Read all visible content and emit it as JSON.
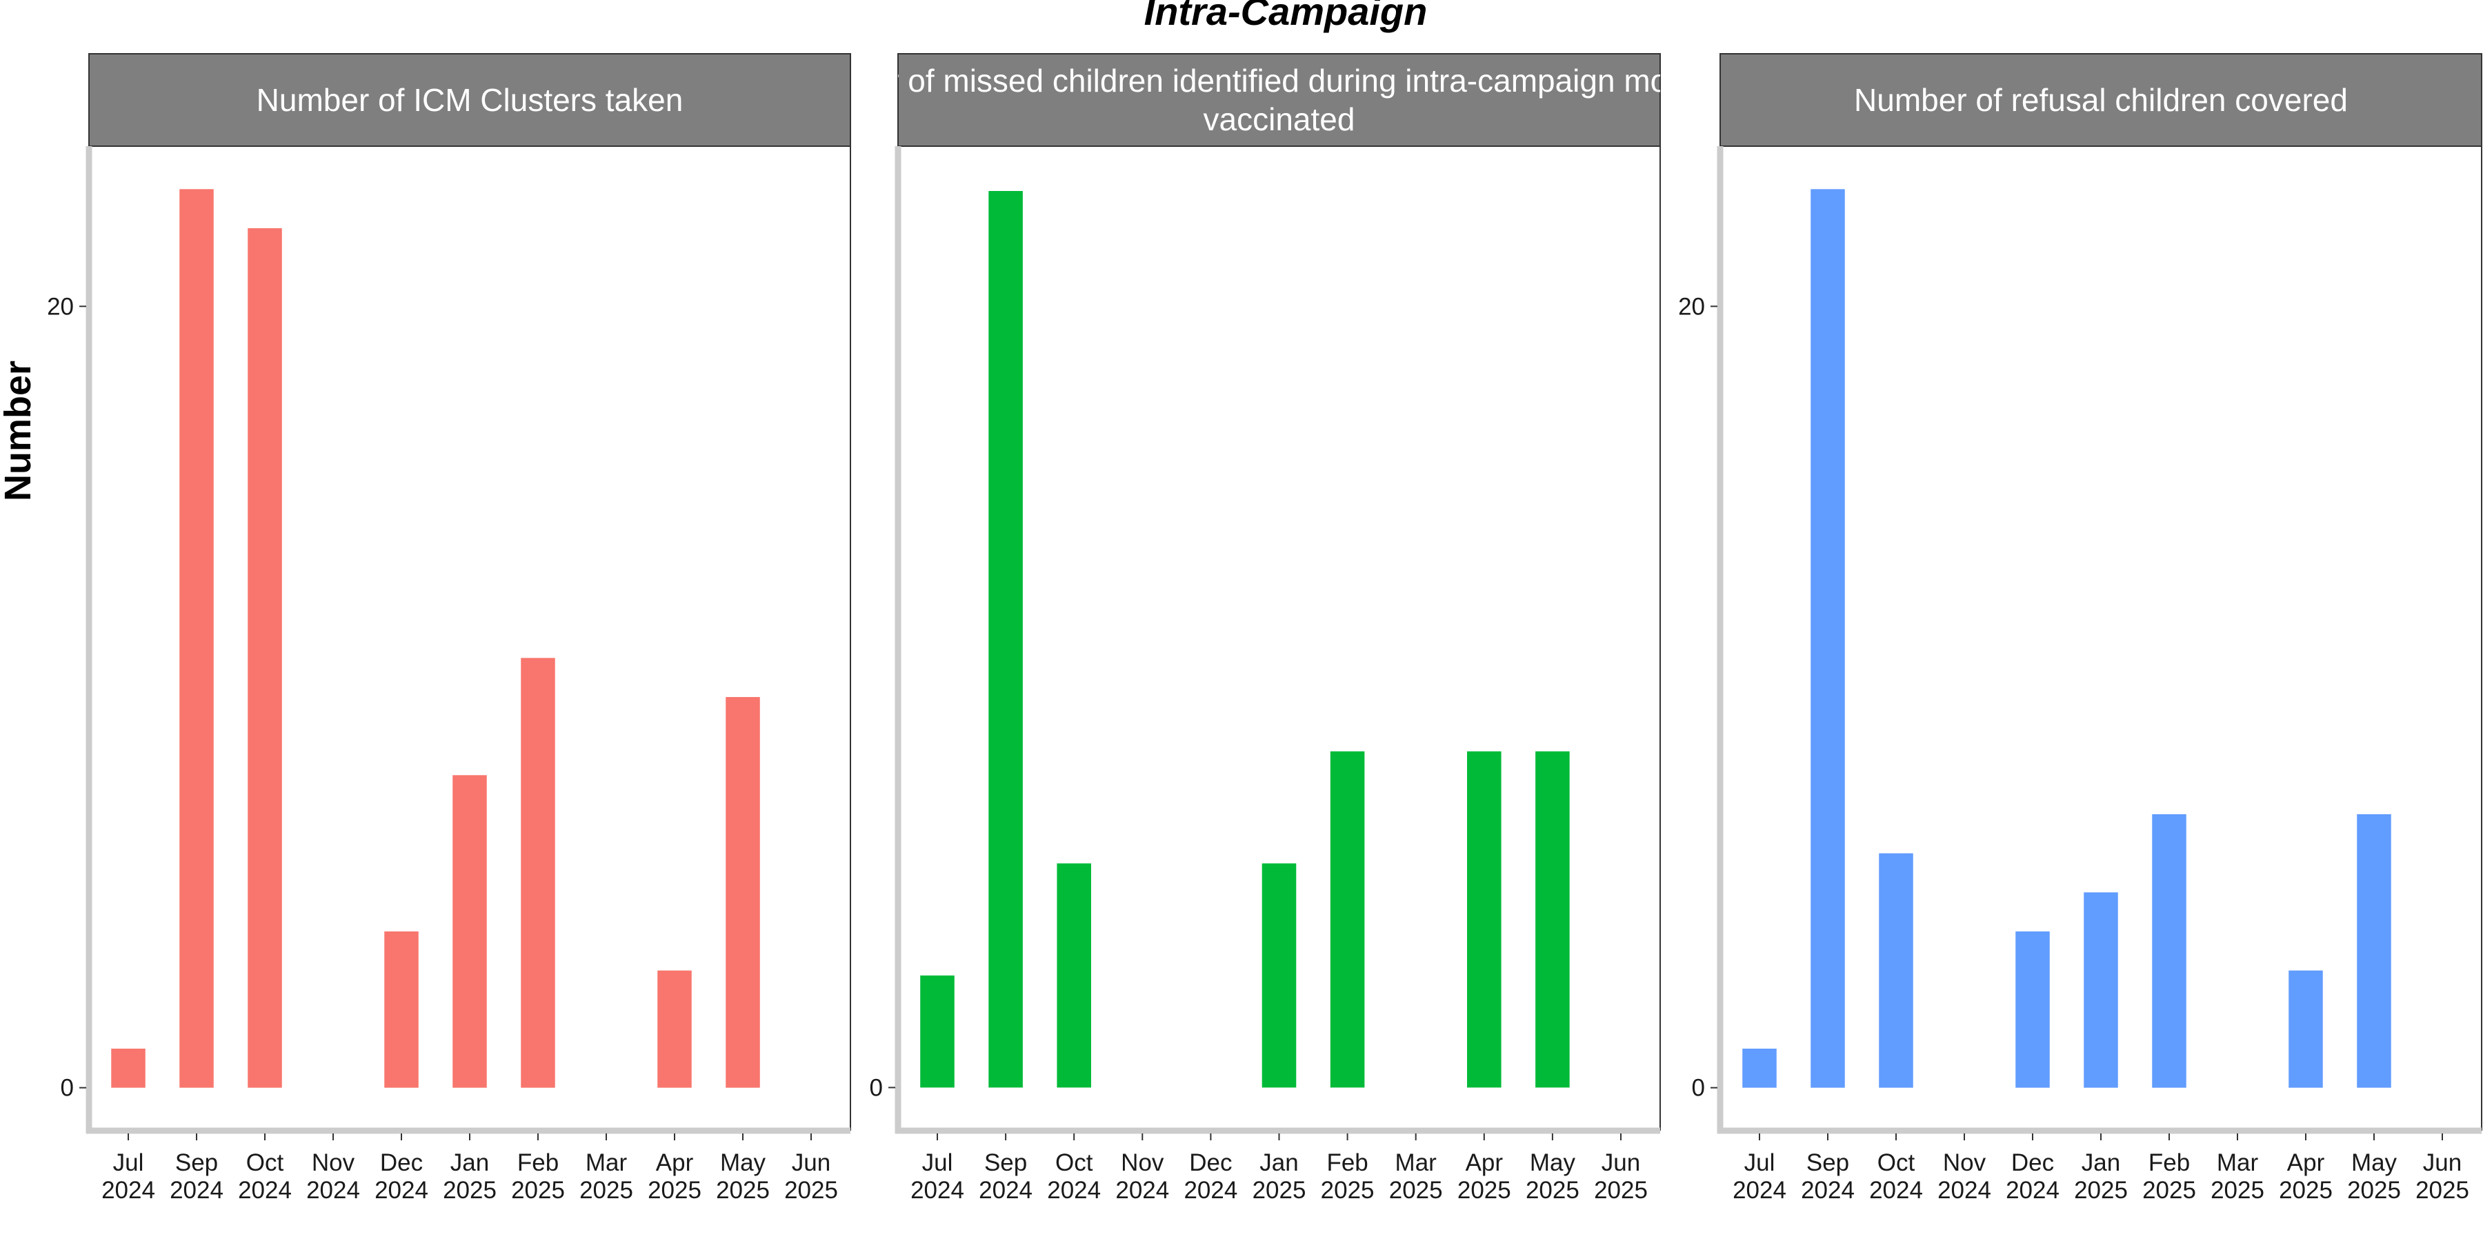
{
  "title": "Intra-Campaign",
  "ylabel": "Number",
  "chart_data": [
    {
      "type": "bar",
      "title": "Number of ICM Clusters taken",
      "title_lines": [
        "Number of ICM Clusters taken"
      ],
      "color": "#F8766D",
      "categories": [
        "Jul 2024",
        "Sep 2024",
        "Oct 2024",
        "Nov 2024",
        "Dec 2024",
        "Jan 2025",
        "Feb 2025",
        "Mar 2025",
        "Apr 2025",
        "May 2025",
        "Jun 2025"
      ],
      "x_tick_labels": [
        [
          "Jul",
          "2024"
        ],
        [
          "Sep",
          "2024"
        ],
        [
          "Oct",
          "2024"
        ],
        [
          "Nov",
          "2024"
        ],
        [
          "Dec",
          "2024"
        ],
        [
          "Jan",
          "2025"
        ],
        [
          "Feb",
          "2025"
        ],
        [
          "Mar",
          "2025"
        ],
        [
          "Apr",
          "2025"
        ],
        [
          "May",
          "2025"
        ],
        [
          "Jun",
          "2025"
        ]
      ],
      "values": [
        1,
        23,
        22,
        0,
        4,
        8,
        11,
        0,
        3,
        10,
        0
      ],
      "y_ticks": [
        0,
        20
      ],
      "y_tick_labels": [
        "0",
        "20"
      ],
      "show_y_ticks": true,
      "ylim": [
        -1.1,
        24.1
      ]
    },
    {
      "type": "bar",
      "title": "Number of missed children identified during intra-campaign monitoring vaccinated",
      "title_lines": [
        "Number of missed children identified during intra-campaign monitoring",
        "vaccinated"
      ],
      "color": "#00BA38",
      "categories": [
        "Jul 2024",
        "Sep 2024",
        "Oct 2024",
        "Nov 2024",
        "Dec 2024",
        "Jan 2025",
        "Feb 2025",
        "Mar 2025",
        "Apr 2025",
        "May 2025",
        "Jun 2025"
      ],
      "x_tick_labels": [
        [
          "Jul",
          "2024"
        ],
        [
          "Sep",
          "2024"
        ],
        [
          "Oct",
          "2024"
        ],
        [
          "Nov",
          "2024"
        ],
        [
          "Dec",
          "2024"
        ],
        [
          "Jan",
          "2025"
        ],
        [
          "Feb",
          "2025"
        ],
        [
          "Mar",
          "2025"
        ],
        [
          "Apr",
          "2025"
        ],
        [
          "May",
          "2025"
        ],
        [
          "Jun",
          "2025"
        ]
      ],
      "values": [
        2,
        16,
        4,
        0,
        0,
        4,
        6,
        0,
        6,
        6,
        0
      ],
      "y_ticks": [
        0
      ],
      "y_tick_labels": [
        "0"
      ],
      "show_y_ticks": true,
      "ylim": [
        -0.77,
        16.8
      ]
    },
    {
      "type": "bar",
      "title": "Number of refusal children covered",
      "title_lines": [
        "Number of refusal children covered"
      ],
      "color": "#619CFF",
      "categories": [
        "Jul 2024",
        "Sep 2024",
        "Oct 2024",
        "Nov 2024",
        "Dec 2024",
        "Jan 2025",
        "Feb 2025",
        "Mar 2025",
        "Apr 2025",
        "May 2025",
        "Jun 2025"
      ],
      "x_tick_labels": [
        [
          "Jul",
          "2024"
        ],
        [
          "Sep",
          "2024"
        ],
        [
          "Oct",
          "2024"
        ],
        [
          "Nov",
          "2024"
        ],
        [
          "Dec",
          "2024"
        ],
        [
          "Jan",
          "2025"
        ],
        [
          "Feb",
          "2025"
        ],
        [
          "Mar",
          "2025"
        ],
        [
          "Apr",
          "2025"
        ],
        [
          "May",
          "2025"
        ],
        [
          "Jun",
          "2025"
        ]
      ],
      "values": [
        1,
        23,
        6,
        0,
        4,
        5,
        7,
        0,
        3,
        7,
        0
      ],
      "y_ticks": [
        0,
        20
      ],
      "y_tick_labels": [
        "0",
        "20"
      ],
      "show_y_ticks": true,
      "ylim": [
        -1.1,
        24.1
      ]
    }
  ]
}
